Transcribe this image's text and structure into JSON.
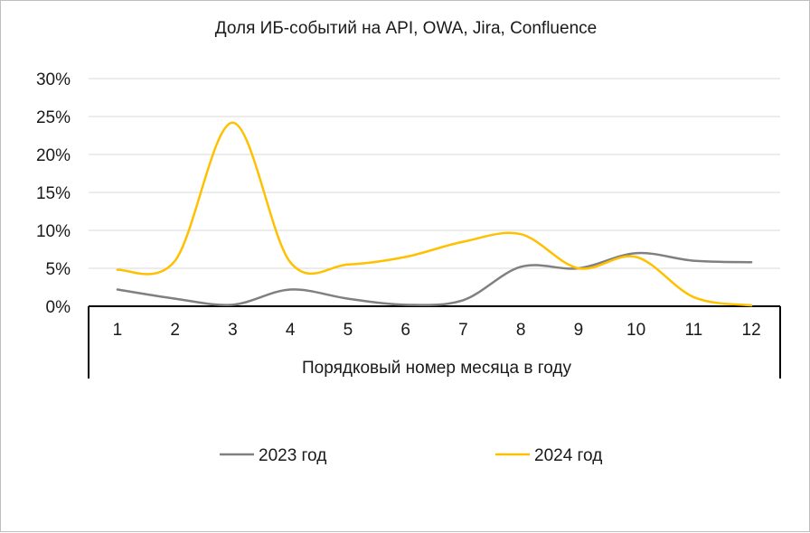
{
  "chart_data": {
    "type": "line",
    "title": "Доля ИБ-событий на API, OWA, Jira, Confluence",
    "xlabel": "Порядковый номер месяца в году",
    "ylabel": "",
    "categories": [
      "1",
      "2",
      "3",
      "4",
      "5",
      "6",
      "7",
      "8",
      "9",
      "10",
      "11",
      "12"
    ],
    "ylim": [
      0,
      30
    ],
    "yticks": [
      0,
      5,
      10,
      15,
      20,
      25,
      30
    ],
    "ytick_labels": [
      "0%",
      "5%",
      "10%",
      "15%",
      "20%",
      "25%",
      "30%"
    ],
    "grid": true,
    "legend_position": "bottom",
    "series": [
      {
        "name": "2023 год",
        "color": "#808080",
        "values": [
          2.2,
          1.0,
          0.2,
          2.2,
          1.0,
          0.2,
          0.8,
          5.2,
          5.0,
          7.0,
          6.0,
          5.8
        ]
      },
      {
        "name": "2024 год",
        "color": "#ffc000",
        "values": [
          4.8,
          6.0,
          24.2,
          5.8,
          5.5,
          6.5,
          8.5,
          9.5,
          5.0,
          6.5,
          1.2,
          0.1
        ]
      }
    ]
  }
}
